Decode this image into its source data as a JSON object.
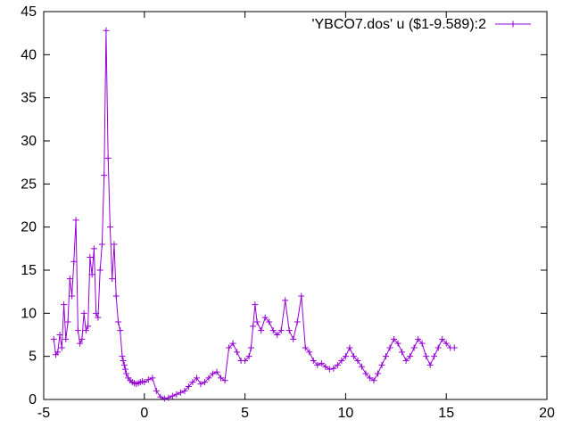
{
  "chart_data": {
    "type": "line",
    "marker": "plus",
    "title": "",
    "xlabel": "",
    "ylabel": "",
    "xlim": [
      -5,
      20
    ],
    "ylim": [
      0,
      45
    ],
    "xticks": [
      -5,
      0,
      5,
      10,
      15,
      20
    ],
    "yticks": [
      0,
      5,
      10,
      15,
      20,
      25,
      30,
      35,
      40,
      45
    ],
    "grid": false,
    "legend_position": "top-right",
    "series": [
      {
        "name": "'YBCO7.dos' u ($1-9.589):2",
        "color": "#9400d3",
        "x": [
          -4.5,
          -4.4,
          -4.3,
          -4.2,
          -4.1,
          -4.0,
          -3.9,
          -3.8,
          -3.7,
          -3.6,
          -3.5,
          -3.4,
          -3.3,
          -3.2,
          -3.1,
          -3.0,
          -2.9,
          -2.8,
          -2.7,
          -2.6,
          -2.5,
          -2.4,
          -2.3,
          -2.2,
          -2.1,
          -2.0,
          -1.9,
          -1.8,
          -1.7,
          -1.6,
          -1.5,
          -1.4,
          -1.3,
          -1.2,
          -1.1,
          -1.05,
          -1.0,
          -0.95,
          -0.9,
          -0.8,
          -0.7,
          -0.6,
          -0.5,
          -0.4,
          -0.3,
          -0.2,
          -0.1,
          0.0,
          0.2,
          0.4,
          0.6,
          0.8,
          1.0,
          1.2,
          1.4,
          1.6,
          1.8,
          2.0,
          2.2,
          2.4,
          2.6,
          2.8,
          3.0,
          3.2,
          3.4,
          3.6,
          3.8,
          4.0,
          4.2,
          4.4,
          4.6,
          4.8,
          5.0,
          5.2,
          5.3,
          5.4,
          5.5,
          5.6,
          5.8,
          6.0,
          6.2,
          6.4,
          6.6,
          6.8,
          7.0,
          7.2,
          7.4,
          7.6,
          7.8,
          8.0,
          8.2,
          8.4,
          8.6,
          8.8,
          9.0,
          9.2,
          9.4,
          9.6,
          9.8,
          10.0,
          10.2,
          10.4,
          10.6,
          10.8,
          11.0,
          11.2,
          11.4,
          11.6,
          11.8,
          12.0,
          12.2,
          12.4,
          12.6,
          12.8,
          13.0,
          13.2,
          13.4,
          13.6,
          13.8,
          14.0,
          14.2,
          14.4,
          14.6,
          14.8,
          15.0,
          15.2,
          15.4
        ],
        "y": [
          7.0,
          5.2,
          5.5,
          7.5,
          6.0,
          11.0,
          7.0,
          9.0,
          14.0,
          12.0,
          16.0,
          20.8,
          8.0,
          6.5,
          7.0,
          10.0,
          8.0,
          8.5,
          16.5,
          14.5,
          17.5,
          10.0,
          9.5,
          15.0,
          18.0,
          26.0,
          42.8,
          28.0,
          20.0,
          14.0,
          18.0,
          12.0,
          9.0,
          8.0,
          5.0,
          4.5,
          4.0,
          3.5,
          3.0,
          2.5,
          2.2,
          2.0,
          1.9,
          1.8,
          1.9,
          2.0,
          2.1,
          2.0,
          2.3,
          2.5,
          1.0,
          0.3,
          0.1,
          0.2,
          0.4,
          0.6,
          0.8,
          1.0,
          1.5,
          2.0,
          2.5,
          1.8,
          2.0,
          2.5,
          3.0,
          3.2,
          2.5,
          2.2,
          6.0,
          6.5,
          5.5,
          4.5,
          4.5,
          5.0,
          6.0,
          8.5,
          11.0,
          9.0,
          8.0,
          9.5,
          9.0,
          8.0,
          7.5,
          8.0,
          11.5,
          8.0,
          7.0,
          9.0,
          12.0,
          6.0,
          5.5,
          4.5,
          4.0,
          4.2,
          3.8,
          3.5,
          3.6,
          4.0,
          4.5,
          5.0,
          6.0,
          5.0,
          4.5,
          3.8,
          3.0,
          2.5,
          2.2,
          3.0,
          4.0,
          5.0,
          6.0,
          7.0,
          6.5,
          5.5,
          4.5,
          5.0,
          6.0,
          7.0,
          6.5,
          5.0,
          4.0,
          5.0,
          6.0,
          7.0,
          6.5,
          6.0,
          6.0
        ]
      }
    ]
  }
}
